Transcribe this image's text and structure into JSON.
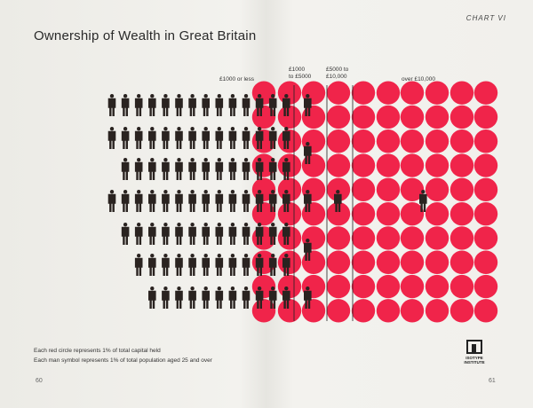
{
  "chart_number": "CHART VI",
  "page_left": "60",
  "page_right": "61",
  "publisher": [
    "ISOTYPE",
    "INSTITUTE"
  ],
  "colors": {
    "circle": "#f0244a",
    "man": "#2a2320",
    "line": "#222222"
  },
  "chart_data": {
    "type": "isotype",
    "title": "Ownership of Wealth in Great Britain",
    "headers": [
      {
        "lines": [
          "£1000 or less"
        ]
      },
      {
        "lines": [
          "£1000",
          "to £5000"
        ]
      },
      {
        "lines": [
          "£5000 to",
          "£10,000"
        ]
      },
      {
        "lines": [
          "over £10,000"
        ]
      }
    ],
    "groups": [
      {
        "population_percent": 91,
        "capital_percent": 16
      },
      {
        "population_percent": 5,
        "capital_percent": 14
      },
      {
        "population_percent": 1,
        "capital_percent": 7
      },
      {
        "population_percent": 1,
        "capital_percent": 63
      }
    ],
    "legend": [
      "Each red circle represents 1% of total capital held",
      "Each man symbol represents 1% of total population aged 25 and over"
    ]
  }
}
